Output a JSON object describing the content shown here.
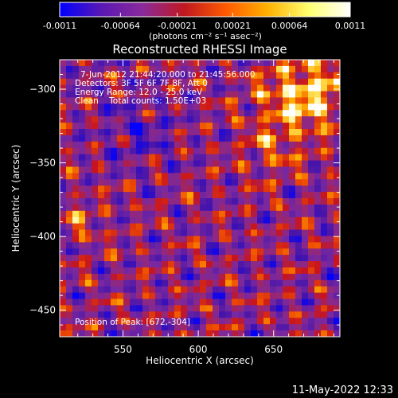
{
  "chart_data": {
    "type": "heatmap",
    "title": "Reconstructed RHESSI Image",
    "xlabel": "Heliocentric X (arcsec)",
    "ylabel": "Heliocentric Y (arcsec)",
    "xlim": [
      508,
      694
    ],
    "ylim": [
      -468,
      -280
    ],
    "x_ticks": [
      550,
      600,
      650
    ],
    "y_ticks": [
      -300,
      -350,
      -400,
      -450
    ],
    "colorbar": {
      "ticks": [
        "-0.0011",
        "-0.00064",
        "-0.00021",
        "0.00021",
        "0.00064",
        "0.0011"
      ],
      "range": [
        -0.0011,
        0.0011
      ],
      "units": "(photons cm⁻² s⁻¹ asec⁻²)",
      "colors": [
        "#0000ff",
        "#5a18b4",
        "#8a2a9a",
        "#c01820",
        "#ff5a00",
        "#ffb000",
        "#ffff70",
        "#ffffff"
      ]
    },
    "annotations": {
      "time": "7-Jun-2012 21:44:20.000 to 21:45:56.000",
      "detectors": "Detectors: 3F 5F 6F 7F 8F, Att 0",
      "energy": "Energy Range: 12.0 - 25.0 keV",
      "clean": "Clean    Total counts: 1.50E+03",
      "peak": "Position of Peak: [672,-304]"
    },
    "peak": {
      "x": 672,
      "y": -304
    }
  },
  "footer": {
    "timestamp": "11-May-2022 12:33"
  }
}
